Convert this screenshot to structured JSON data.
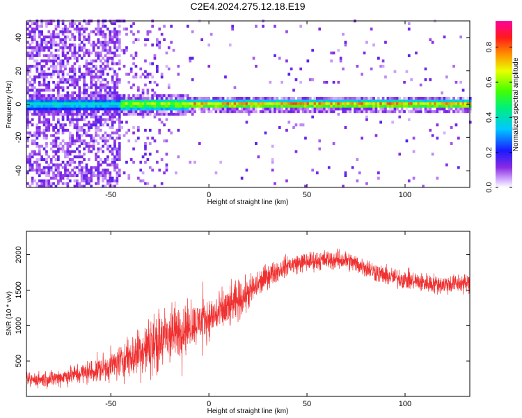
{
  "title": "C2E4.2024.275.12.18.E19",
  "chart_data": [
    {
      "type": "heatmap",
      "xlabel": "Height of straight line (km)",
      "ylabel": "Frequency (Hz)",
      "xlim": [
        -93,
        133
      ],
      "ylim": [
        -50,
        50
      ],
      "xticks": [
        -50,
        0,
        50,
        100
      ],
      "yticks": [
        -40,
        -20,
        0,
        20,
        40
      ],
      "colorbar": {
        "label": "Normalized spectral amplitude",
        "range": [
          0,
          0.95
        ],
        "ticks": [
          "0.0",
          "0.2",
          "0.4",
          "0.6",
          "0.8"
        ],
        "colormap": "rainbow (white → purple → blue → cyan → green → yellow → red → magenta)"
      },
      "description_data": {
        "band_center_hz": 0,
        "noise_region_km": [
          -93,
          -40
        ],
        "band_peak_amplitude": 0.9
      }
    },
    {
      "type": "line",
      "xlabel": "Height of straight line (km)",
      "ylabel": "SNR (10 * v/v)",
      "xlim": [
        -93,
        133
      ],
      "ylim": [
        0,
        2330
      ],
      "xticks": [
        -50,
        0,
        50,
        100
      ],
      "yticks": [
        500,
        1000,
        1500,
        2000
      ],
      "color": "#f03030",
      "envelope": {
        "x": [
          -93,
          -80,
          -70,
          -60,
          -50,
          -40,
          -30,
          -20,
          -10,
          0,
          10,
          20,
          30,
          40,
          50,
          60,
          70,
          80,
          90,
          100,
          110,
          120,
          133
        ],
        "mean": [
          230,
          250,
          300,
          350,
          430,
          560,
          700,
          850,
          1000,
          1100,
          1250,
          1450,
          1700,
          1850,
          1900,
          1930,
          1920,
          1820,
          1700,
          1650,
          1600,
          1580,
          1600
        ],
        "spread": [
          150,
          170,
          200,
          250,
          300,
          450,
          600,
          650,
          450,
          400,
          450,
          350,
          250,
          200,
          200,
          200,
          200,
          200,
          200,
          200,
          200,
          200,
          200
        ]
      }
    }
  ]
}
